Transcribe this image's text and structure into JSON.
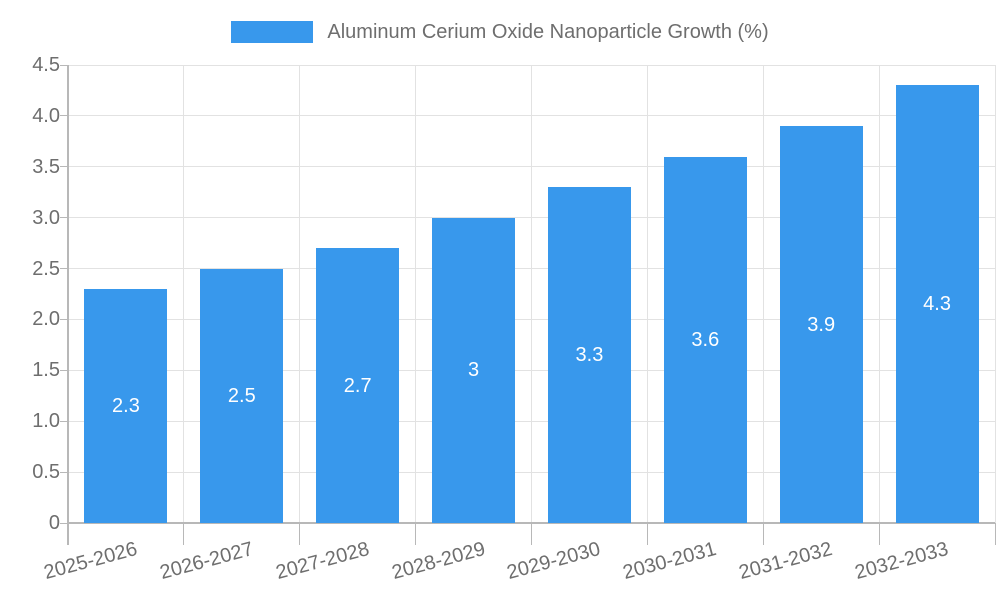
{
  "chart_data": {
    "type": "bar",
    "title": "Aluminum Cerium Oxide Nanoparticle Growth (%)",
    "categories": [
      "2025-2026",
      "2026-2027",
      "2027-2028",
      "2028-2029",
      "2029-2030",
      "2030-2031",
      "2031-2032",
      "2032-2033"
    ],
    "values": [
      2.3,
      2.5,
      2.7,
      3,
      3.3,
      3.6,
      3.9,
      4.3
    ],
    "value_labels": [
      "2.3",
      "2.5",
      "2.7",
      "3",
      "3.3",
      "3.6",
      "3.9",
      "4.3"
    ],
    "xlabel": "",
    "ylabel": "",
    "ylim": [
      0,
      4.5
    ],
    "y_ticks": [
      "0",
      "0.5",
      "1.0",
      "1.5",
      "2.0",
      "2.5",
      "3.0",
      "3.5",
      "4.0",
      "4.5"
    ],
    "grid": true,
    "legend_position": "top",
    "colors": {
      "bar": "#3898ec",
      "grid": "#e2e2e2",
      "axis": "#b8b8b8",
      "tick_text": "#6e6e6e",
      "value_label_text": "#ffffff"
    }
  }
}
